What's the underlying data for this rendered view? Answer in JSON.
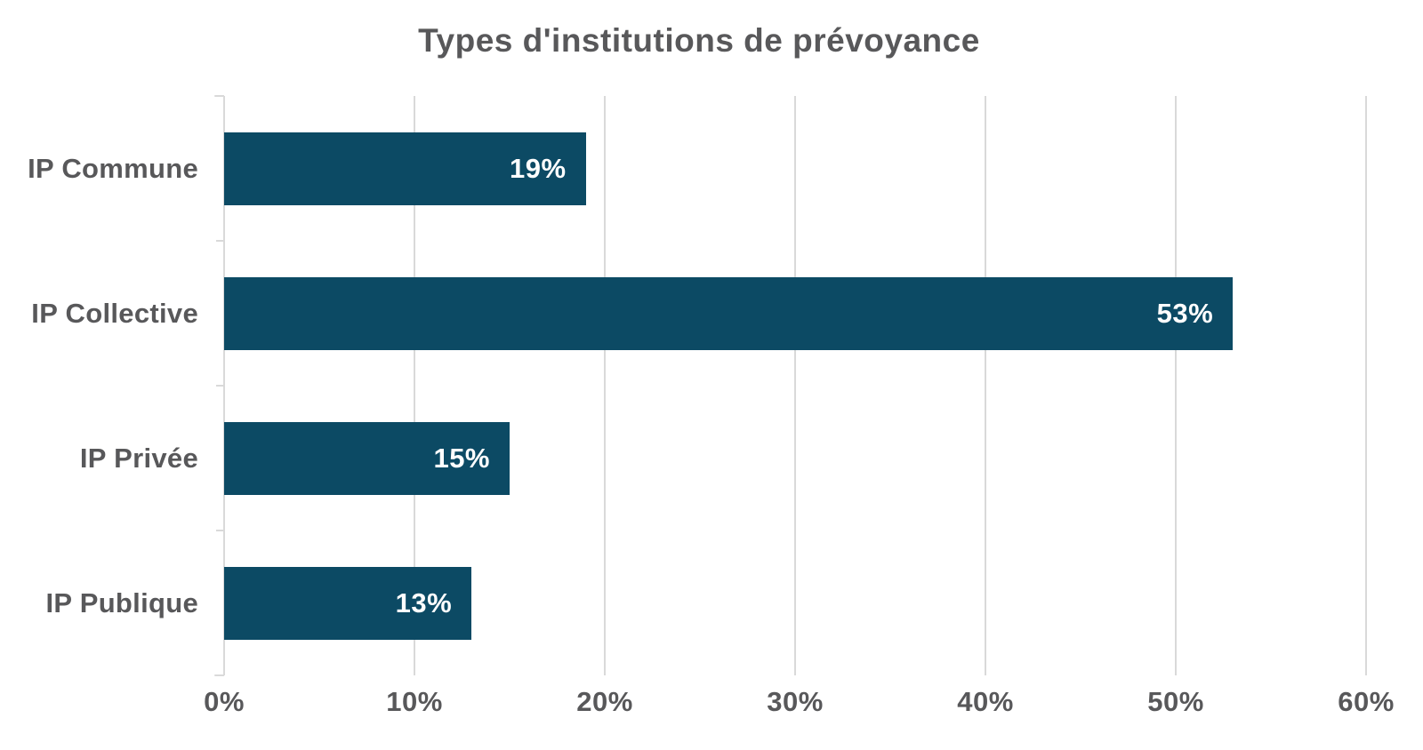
{
  "chart_data": {
    "type": "bar",
    "orientation": "horizontal",
    "title": "Types d'institutions de prévoyance",
    "categories": [
      "IP Commune",
      "IP Collective",
      "IP Privée",
      "IP Publique"
    ],
    "values": [
      19,
      53,
      15,
      13
    ],
    "value_labels": [
      "19%",
      "53%",
      "15%",
      "13%"
    ],
    "xlim": [
      0,
      60
    ],
    "x_tick_values": [
      0,
      10,
      20,
      30,
      40,
      50,
      60
    ],
    "x_tick_labels": [
      "0%",
      "10%",
      "20%",
      "30%",
      "40%",
      "50%",
      "60%"
    ],
    "grid": true,
    "legend": false,
    "xlabel": "",
    "ylabel": "",
    "colors": {
      "bar": "#0C4A64",
      "gridline": "#D9D9D9",
      "label_text": "#58585A",
      "value_text": "#FFFFFF",
      "background": "#FFFFFF"
    }
  }
}
